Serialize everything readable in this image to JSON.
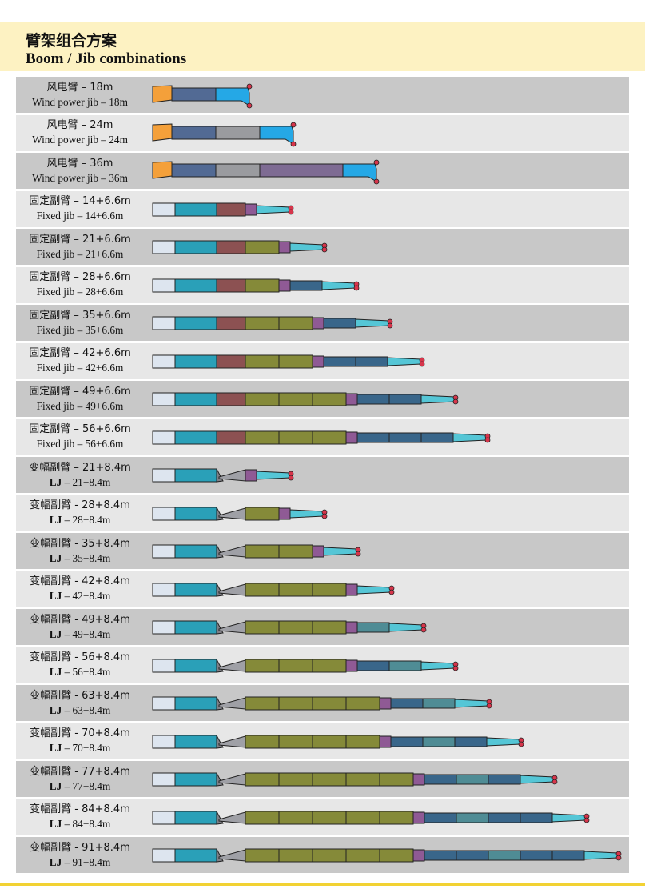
{
  "header": {
    "title_cn": "臂架组合方案",
    "title_en": "Boom / Jib combinations"
  },
  "colors": {
    "row_dark": "#c8c8c8",
    "row_light": "#e7e7e7",
    "base_section": "#dde5ef",
    "teal_section": "#2aa0b8",
    "brown_section": "#8c5152",
    "olive_section": "#858a39",
    "purple_adapter": "#8f5a95",
    "steel_section": "#39668a",
    "cyan_tip": "#55c6d6",
    "orange_cap": "#f4a03a",
    "slate_section": "#526a94",
    "blue_head": "#25a8e6",
    "grey_section": "#9a9b9f",
    "lavender_section": "#7e6b93",
    "pulley_red": "#d7354b"
  },
  "rows": [
    {
      "cn": "风电臂 – 18m",
      "en_bold": "",
      "en": "Wind power jib – 18m",
      "kind": "wind",
      "sections": [
        "slate"
      ]
    },
    {
      "cn": "风电臂 – 24m",
      "en_bold": "",
      "en": "Wind power jib – 24m",
      "kind": "wind",
      "sections": [
        "slate",
        "grey"
      ]
    },
    {
      "cn": "风电臂 – 36m",
      "en_bold": "",
      "en": "Wind power jib – 36m",
      "kind": "wind",
      "sections": [
        "slate",
        "grey",
        "lavender"
      ]
    },
    {
      "cn": "固定副臂 – 14+6.6m",
      "en_bold": "",
      "en": "Fixed jib – 14+6.6m",
      "kind": "fixed",
      "sections": [
        "brown"
      ],
      "jib": []
    },
    {
      "cn": "固定副臂 – 21+6.6m",
      "en_bold": "",
      "en": "Fixed jib – 21+6.6m",
      "kind": "fixed",
      "sections": [
        "brown",
        "olive"
      ],
      "jib": []
    },
    {
      "cn": "固定副臂 – 28+6.6m",
      "en_bold": "",
      "en": "Fixed jib – 28+6.6m",
      "kind": "fixed",
      "sections": [
        "brown",
        "olive"
      ],
      "jib": [
        "steel"
      ]
    },
    {
      "cn": "固定副臂 – 35+6.6m",
      "en_bold": "",
      "en": "Fixed jib – 35+6.6m",
      "kind": "fixed",
      "sections": [
        "brown",
        "olive",
        "olive"
      ],
      "jib": [
        "steel"
      ]
    },
    {
      "cn": "固定副臂 – 42+6.6m",
      "en_bold": "",
      "en": "Fixed jib – 42+6.6m",
      "kind": "fixed",
      "sections": [
        "brown",
        "olive",
        "olive"
      ],
      "jib": [
        "steel",
        "steel"
      ]
    },
    {
      "cn": "固定副臂 – 49+6.6m",
      "en_bold": "",
      "en": "Fixed jib – 49+6.6m",
      "kind": "fixed",
      "sections": [
        "brown",
        "olive",
        "olive",
        "olive"
      ],
      "jib": [
        "steel",
        "steel"
      ]
    },
    {
      "cn": "固定副臂 – 56+6.6m",
      "en_bold": "",
      "en": "Fixed jib – 56+6.6m",
      "kind": "fixed",
      "sections": [
        "brown",
        "olive",
        "olive",
        "olive"
      ],
      "jib": [
        "steel",
        "steel",
        "steel"
      ]
    },
    {
      "cn": "变幅副臂 – 21+8.4m",
      "en_bold": "LJ",
      "en": "– 21+8.4m",
      "kind": "lj",
      "sections": [],
      "jib": []
    },
    {
      "cn": "变幅副臂 - 28+8.4m",
      "en_bold": "LJ",
      "en": "– 28+8.4m",
      "kind": "lj",
      "sections": [
        "olive"
      ],
      "jib": []
    },
    {
      "cn": "变幅副臂 - 35+8.4m",
      "en_bold": "LJ",
      "en": "– 35+8.4m",
      "kind": "lj",
      "sections": [
        "olive",
        "olive"
      ],
      "jib": []
    },
    {
      "cn": "变幅副臂 - 42+8.4m",
      "en_bold": "LJ",
      "en": "– 42+8.4m",
      "kind": "lj",
      "sections": [
        "olive",
        "olive",
        "olive"
      ],
      "jib": []
    },
    {
      "cn": "变幅副臂 - 49+8.4m",
      "en_bold": "LJ",
      "en": "– 49+8.4m",
      "kind": "lj",
      "sections": [
        "olive",
        "olive",
        "olive"
      ],
      "jib": [
        "teal2"
      ]
    },
    {
      "cn": "变幅副臂 - 56+8.4m",
      "en_bold": "LJ",
      "en": "– 56+8.4m",
      "kind": "lj",
      "sections": [
        "olive",
        "olive",
        "olive"
      ],
      "jib": [
        "steel",
        "teal2"
      ]
    },
    {
      "cn": "变幅副臂 - 63+8.4m",
      "en_bold": "LJ",
      "en": "– 63+8.4m",
      "kind": "lj",
      "sections": [
        "olive",
        "olive",
        "olive",
        "olive"
      ],
      "jib": [
        "steel",
        "teal2"
      ]
    },
    {
      "cn": "变幅副臂 - 70+8.4m",
      "en_bold": "LJ",
      "en": "– 70+8.4m",
      "kind": "lj",
      "sections": [
        "olive",
        "olive",
        "olive",
        "olive"
      ],
      "jib": [
        "steel",
        "teal2",
        "steel"
      ]
    },
    {
      "cn": "变幅副臂 - 77+8.4m",
      "en_bold": "LJ",
      "en": "– 77+8.4m",
      "kind": "lj",
      "sections": [
        "olive",
        "olive",
        "olive",
        "olive",
        "olive"
      ],
      "jib": [
        "steel",
        "teal2",
        "steel"
      ]
    },
    {
      "cn": "变幅副臂 - 84+8.4m",
      "en_bold": "LJ",
      "en": "– 84+8.4m",
      "kind": "lj",
      "sections": [
        "olive",
        "olive",
        "olive",
        "olive",
        "olive"
      ],
      "jib": [
        "steel",
        "teal2",
        "steel",
        "steel"
      ]
    },
    {
      "cn": "变幅副臂 - 91+8.4m",
      "en_bold": "LJ",
      "en": "– 91+8.4m",
      "kind": "lj",
      "sections": [
        "olive",
        "olive",
        "olive",
        "olive",
        "olive"
      ],
      "jib": [
        "steel",
        "steel",
        "teal2",
        "steel",
        "steel"
      ]
    }
  ]
}
